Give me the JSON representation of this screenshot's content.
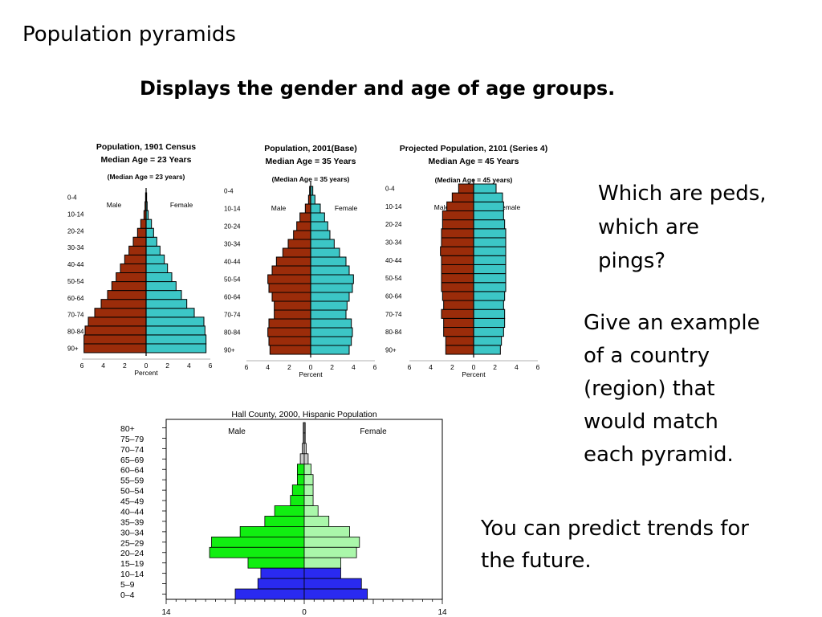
{
  "slide": {
    "title": "Population pyramids",
    "subtitle": "Displays the gender and age of age groups.",
    "note_1": [
      "Which are peds,",
      "which are",
      "pings?"
    ],
    "note_2": [
      "Give an example",
      "of a country",
      "(region) that",
      "would match",
      "each pyramid."
    ],
    "note_3": [
      "You can predict trends for",
      "the future."
    ]
  },
  "colors": {
    "male": "#9B2C0A",
    "female": "#3CC6C6",
    "green_dark": "#11EE11",
    "green_light": "#AAF7AA",
    "blue": "#2A2AF0",
    "grey": "#C8C8C8"
  },
  "chart_data": [
    {
      "type": "bar",
      "title": "Population, 1901 Census",
      "subtitle": "Median Age = 23 Years",
      "note": "(Median Age = 23 years)",
      "xlabel": "Percent",
      "left_label": "Male",
      "right_label": "Female",
      "xticks": [
        "6",
        "4",
        "2",
        "0",
        "2",
        "4",
        "6"
      ],
      "xlim": [
        -6,
        6
      ],
      "ytick_labels": [
        "90+",
        "80-84",
        "70-74",
        "60-64",
        "50-54",
        "40-44",
        "30-34",
        "20-24",
        "10-14",
        "0-4"
      ],
      "male": [
        5.8,
        5.8,
        5.7,
        5.4,
        4.8,
        4.2,
        3.6,
        3.2,
        2.8,
        2.4,
        2.0,
        1.6,
        1.2,
        0.8,
        0.5,
        0.2,
        0.1,
        0.05
      ],
      "female": [
        5.6,
        5.6,
        5.5,
        5.4,
        4.5,
        3.8,
        3.3,
        2.8,
        2.4,
        2.0,
        1.7,
        1.3,
        1.0,
        0.7,
        0.5,
        0.2,
        0.1,
        0.05
      ]
    },
    {
      "type": "bar",
      "title": "Population, 2001(Base)",
      "subtitle": "Median Age = 35 Years",
      "note": "(Median Age = 35 years)",
      "xlabel": "Percent",
      "left_label": "Male",
      "right_label": "Female",
      "xticks": [
        "6",
        "4",
        "2",
        "0",
        "2",
        "4",
        "6"
      ],
      "xlim": [
        -6,
        6
      ],
      "ytick_labels": [
        "90+",
        "80-84",
        "70-74",
        "60-64",
        "50-54",
        "40-44",
        "30-34",
        "20-24",
        "10-14",
        "0-4"
      ],
      "male": [
        3.8,
        3.9,
        4.0,
        3.9,
        3.4,
        3.4,
        3.6,
        3.9,
        4.0,
        3.6,
        3.2,
        2.6,
        2.1,
        1.6,
        1.3,
        1.0,
        0.5,
        0.2,
        0.1
      ],
      "female": [
        3.6,
        3.8,
        3.9,
        3.8,
        3.3,
        3.4,
        3.6,
        3.9,
        4.0,
        3.6,
        3.3,
        2.7,
        2.2,
        1.8,
        1.6,
        1.3,
        0.9,
        0.4,
        0.2
      ]
    },
    {
      "type": "bar",
      "title": "Projected Population, 2101 (Series 4)",
      "subtitle": "Median Age = 45 Years",
      "note": "(Median Age = 45 years)",
      "xlabel": "Percent",
      "left_label": "Male",
      "right_label": "Female",
      "xticks": [
        "6",
        "4",
        "2",
        "0",
        "2",
        "4",
        "6"
      ],
      "xlim": [
        -6,
        6
      ],
      "ytick_labels": [
        "90+",
        "80-84",
        "70-74",
        "60-64",
        "50-54",
        "40-44",
        "30-34",
        "20-24",
        "10-14",
        "0-4"
      ],
      "male": [
        2.6,
        2.6,
        2.8,
        2.8,
        3.0,
        2.8,
        2.9,
        3.0,
        3.0,
        3.0,
        3.0,
        3.1,
        3.0,
        3.0,
        2.9,
        2.9,
        2.5,
        2.0,
        1.4
      ],
      "female": [
        2.5,
        2.6,
        2.8,
        2.9,
        2.9,
        2.8,
        2.9,
        3.0,
        3.0,
        3.0,
        3.0,
        3.0,
        3.0,
        3.0,
        2.9,
        2.8,
        2.8,
        2.7,
        2.1
      ]
    },
    {
      "type": "bar",
      "title": "Hall County, 2000, Hispanic Population",
      "left_label": "Male",
      "right_label": "Female",
      "xticks": [
        "14",
        "0",
        "14"
      ],
      "xlim": [
        -14,
        14
      ],
      "categories": [
        "80+",
        "75–79",
        "70–74",
        "65–69",
        "60–64",
        "55–59",
        "50–54",
        "45–49",
        "40–44",
        "35–39",
        "30–34",
        "25–29",
        "20–24",
        "15–19",
        "10–14",
        "5–9",
        "0–4"
      ],
      "male": [
        0.1,
        0.1,
        0.2,
        0.4,
        0.7,
        0.7,
        1.2,
        1.4,
        3.0,
        4.0,
        6.5,
        9.4,
        9.6,
        5.7,
        4.4,
        4.7,
        7.0
      ],
      "female": [
        0.1,
        0.1,
        0.2,
        0.4,
        0.7,
        0.9,
        0.9,
        0.9,
        1.4,
        2.5,
        4.6,
        5.6,
        5.3,
        3.7,
        3.7,
        5.8,
        6.4
      ],
      "male_colors": [
        "grey",
        "grey",
        "grey",
        "grey",
        "green_dark",
        "green_dark",
        "green_dark",
        "green_dark",
        "green_dark",
        "green_dark",
        "green_dark",
        "green_dark",
        "green_dark",
        "green_dark",
        "blue",
        "blue",
        "blue"
      ],
      "female_colors": [
        "grey",
        "grey",
        "grey",
        "grey",
        "green_light",
        "green_light",
        "green_light",
        "green_light",
        "green_light",
        "green_light",
        "green_light",
        "green_light",
        "green_light",
        "green_light",
        "blue",
        "blue",
        "blue"
      ]
    }
  ]
}
